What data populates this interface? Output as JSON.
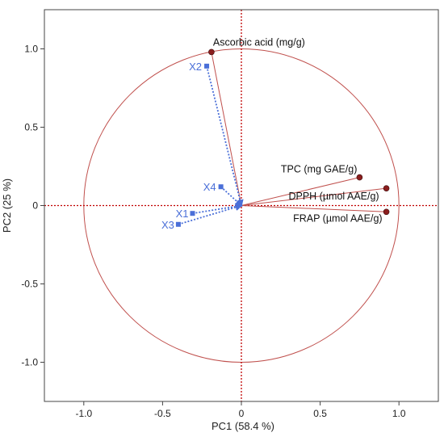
{
  "colors": {
    "variable": "#c0504d",
    "observation": "#4a6fd8",
    "axis_frame": "#444444",
    "zero_line": "#c00000",
    "point_fill": "#8b1e1e"
  },
  "chart_data": {
    "type": "scatter",
    "subtype": "pca-correlation-circle",
    "title": "",
    "xlabel": "PC1  (58.4 %)",
    "ylabel": "PC2  (25 %)",
    "xlim": [
      -1.25,
      1.25
    ],
    "ylim": [
      -1.25,
      1.25
    ],
    "xticks": [
      -1.0,
      -0.5,
      0,
      0.5,
      1.0
    ],
    "yticks": [
      -1.0,
      -0.5,
      0,
      0.5,
      1.0
    ],
    "xtick_labels": [
      "-1.0",
      "-0.5",
      "0",
      "0.5",
      "1.0"
    ],
    "ytick_labels": [
      "-1.0",
      "-0.5",
      "0",
      "0.5",
      "1.0"
    ],
    "grid": false,
    "unit_circle": true,
    "zero_lines": true,
    "variables": [
      {
        "label": "Ascorbic acid (mg/g)",
        "x": -0.19,
        "y": 0.98
      },
      {
        "label": "TPC (mg GAE/g)",
        "x": 0.75,
        "y": 0.18
      },
      {
        "label": "DPPH (µmol AAE/g)",
        "x": 0.92,
        "y": 0.11
      },
      {
        "label": "FRAP (µmol AAE/g)",
        "x": 0.92,
        "y": -0.04
      }
    ],
    "observations": [
      {
        "label": "X2",
        "x": -0.22,
        "y": 0.89
      },
      {
        "label": "X4",
        "x": -0.13,
        "y": 0.12
      },
      {
        "label": "X1",
        "x": -0.31,
        "y": -0.05
      },
      {
        "label": "X3",
        "x": -0.4,
        "y": -0.12
      }
    ]
  }
}
